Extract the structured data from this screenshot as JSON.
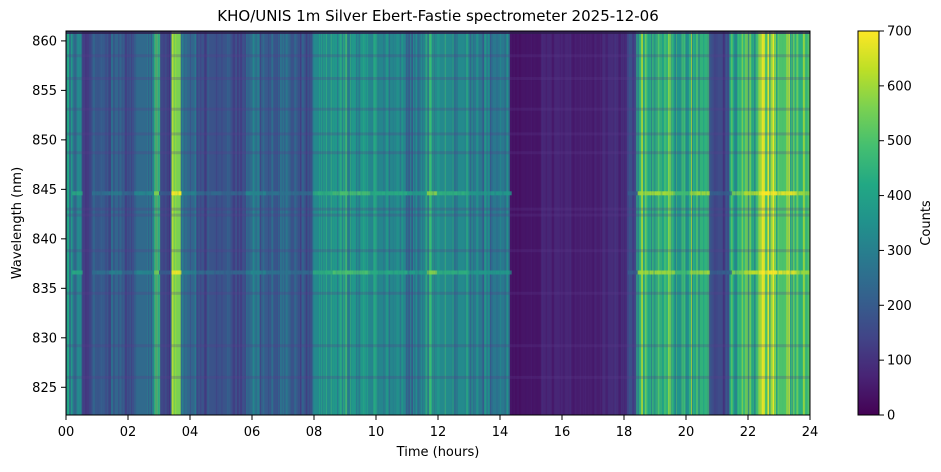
{
  "chart_data": {
    "type": "heatmap",
    "title": "KHO/UNIS 1m Silver Ebert-Fastie spectrometer 2025-12-06",
    "xlabel": "Time (hours)",
    "ylabel": "Wavelength (nm)",
    "xlim": [
      0,
      24
    ],
    "ylim": [
      822.2,
      861.0
    ],
    "x_ticks": [
      0,
      2,
      4,
      6,
      8,
      10,
      12,
      14,
      16,
      18,
      20,
      22,
      24
    ],
    "x_tick_labels": [
      "00",
      "02",
      "04",
      "06",
      "08",
      "10",
      "12",
      "14",
      "16",
      "18",
      "20",
      "22",
      "24"
    ],
    "y_ticks": [
      825,
      830,
      835,
      840,
      845,
      850,
      855,
      860
    ],
    "y_tick_labels": [
      "825",
      "830",
      "835",
      "840",
      "845",
      "850",
      "855",
      "860"
    ],
    "colormap": "viridis",
    "colorbar": {
      "label": "Counts",
      "range": [
        0,
        700
      ],
      "ticks": [
        0,
        100,
        200,
        300,
        400,
        500,
        600,
        700
      ],
      "tick_labels": [
        "0",
        "100",
        "200",
        "300",
        "400",
        "500",
        "600",
        "700"
      ]
    },
    "time_profile": [
      {
        "start": 0.0,
        "end": 0.1,
        "counts": 420
      },
      {
        "start": 0.1,
        "end": 0.5,
        "counts": 320
      },
      {
        "start": 0.5,
        "end": 0.8,
        "counts": 120
      },
      {
        "start": 0.8,
        "end": 1.4,
        "counts": 190
      },
      {
        "start": 1.4,
        "end": 1.8,
        "counts": 230
      },
      {
        "start": 1.8,
        "end": 2.2,
        "counts": 170
      },
      {
        "start": 2.2,
        "end": 2.8,
        "counts": 240
      },
      {
        "start": 2.8,
        "end": 3.0,
        "counts": 420
      },
      {
        "start": 3.0,
        "end": 3.4,
        "counts": 150
      },
      {
        "start": 3.4,
        "end": 3.7,
        "counts": 560
      },
      {
        "start": 3.7,
        "end": 4.2,
        "counts": 230
      },
      {
        "start": 4.2,
        "end": 5.0,
        "counts": 180
      },
      {
        "start": 5.0,
        "end": 5.8,
        "counts": 170
      },
      {
        "start": 5.8,
        "end": 6.4,
        "counts": 240
      },
      {
        "start": 6.4,
        "end": 7.2,
        "counts": 200
      },
      {
        "start": 7.2,
        "end": 7.9,
        "counts": 180
      },
      {
        "start": 7.9,
        "end": 8.6,
        "counts": 330
      },
      {
        "start": 8.6,
        "end": 9.8,
        "counts": 370
      },
      {
        "start": 9.8,
        "end": 11.0,
        "counts": 320
      },
      {
        "start": 11.0,
        "end": 11.6,
        "counts": 290
      },
      {
        "start": 11.6,
        "end": 11.9,
        "counts": 430
      },
      {
        "start": 11.9,
        "end": 13.0,
        "counts": 330
      },
      {
        "start": 13.0,
        "end": 14.3,
        "counts": 280
      },
      {
        "start": 14.3,
        "end": 15.3,
        "counts": 40
      },
      {
        "start": 15.3,
        "end": 16.3,
        "counts": 75
      },
      {
        "start": 16.3,
        "end": 17.3,
        "counts": 55
      },
      {
        "start": 17.3,
        "end": 18.1,
        "counts": 90
      },
      {
        "start": 18.1,
        "end": 18.4,
        "counts": 150
      },
      {
        "start": 18.4,
        "end": 19.6,
        "counts": 450
      },
      {
        "start": 19.6,
        "end": 20.1,
        "counts": 360
      },
      {
        "start": 20.1,
        "end": 20.7,
        "counts": 450
      },
      {
        "start": 20.7,
        "end": 21.4,
        "counts": 160
      },
      {
        "start": 21.4,
        "end": 21.8,
        "counts": 420
      },
      {
        "start": 21.8,
        "end": 22.3,
        "counts": 470
      },
      {
        "start": 22.3,
        "end": 22.9,
        "counts": 590
      },
      {
        "start": 22.9,
        "end": 23.5,
        "counts": 500
      },
      {
        "start": 23.5,
        "end": 24.0,
        "counts": 440
      }
    ],
    "emission_lines_nm": [
      844.6,
      836.6
    ]
  }
}
